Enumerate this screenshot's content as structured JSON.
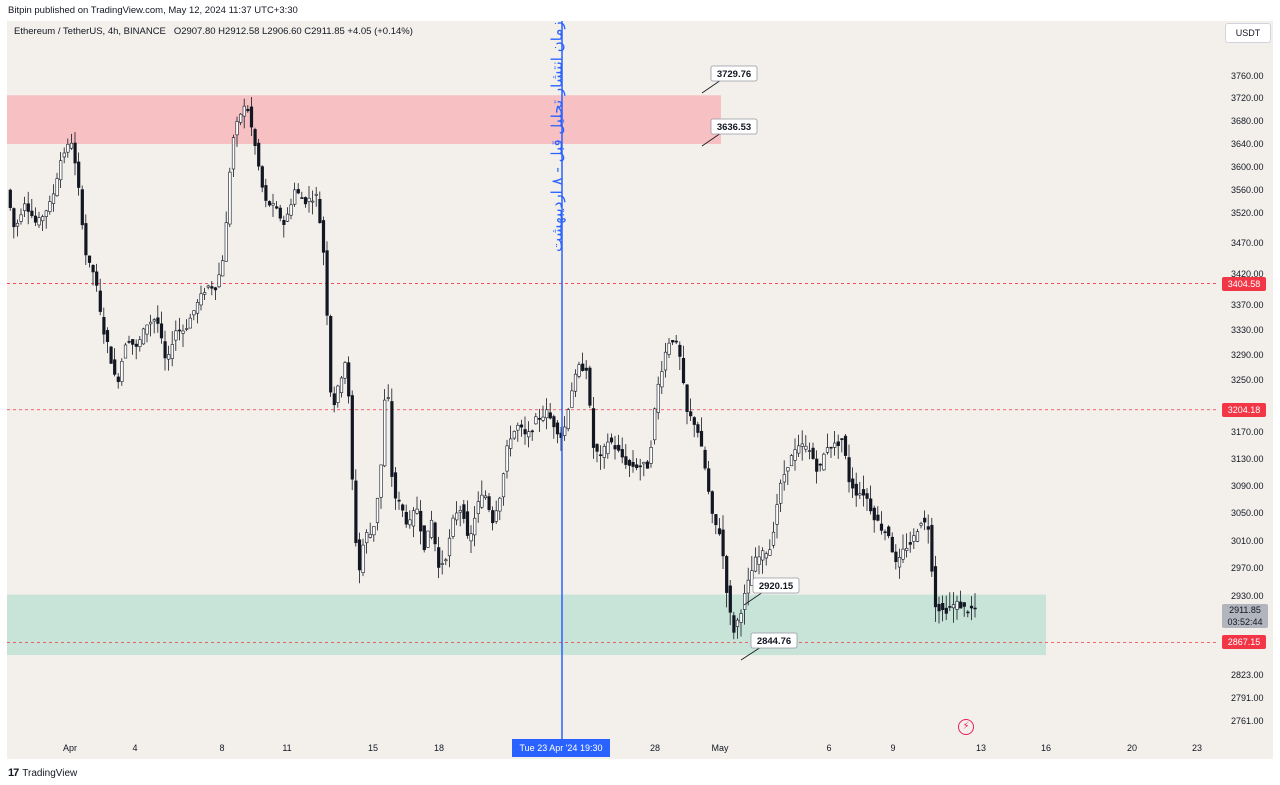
{
  "header": {
    "publisher": "Bitpin published on TradingView.com, May 12, 2024 11:37 UTC+3:30",
    "symbol": "Ethereum / TetherUS, 4h, BINANCE",
    "ohlc": "O2907.80  H2912.58  L2906.60  C2911.85  +4.05 (+0.14%)",
    "currency": "USDT"
  },
  "footer": {
    "brand": "TradingView"
  },
  "annotation": {
    "vertical_text": "زمان انتشار تحلیل قبل - ۸ اردیبهشت",
    "time_marker": "Tue 23 Apr '24   19:30"
  },
  "current_price": {
    "price": "2911.85",
    "countdown": "03:52:44"
  },
  "level_badges": [
    {
      "label": "3404.58",
      "price": 3404.58,
      "color": "#f23645"
    },
    {
      "label": "3204.18",
      "price": 3204.18,
      "color": "#f23645"
    },
    {
      "label": "2867.15",
      "price": 2867.15,
      "color": "#f23645"
    }
  ],
  "chart_data": {
    "type": "candlestick",
    "symbol": "ETHUSDT",
    "timeframe": "4h",
    "ylim": [
      2740,
      3790
    ],
    "price_ticks": [
      "3760.00",
      "3720.00",
      "3680.00",
      "3640.00",
      "3600.00",
      "3560.00",
      "3520.00",
      "3470.00",
      "3420.00",
      "3370.00",
      "3330.00",
      "3290.00",
      "3250.00",
      "3170.00",
      "3130.00",
      "3090.00",
      "3050.00",
      "3010.00",
      "2970.00",
      "2930.00",
      "2823.00",
      "2791.00",
      "2761.00"
    ],
    "time_ticks": [
      "Apr",
      "4",
      "8",
      "11",
      "15",
      "18",
      "28",
      "May",
      "6",
      "9",
      "13",
      "16",
      "20",
      "23"
    ],
    "zones": [
      {
        "name": "resistance",
        "from": 3640,
        "to": 3725,
        "color": "#f7c1c4"
      },
      {
        "name": "support",
        "from": 2850,
        "to": 2932,
        "color": "#c8e3d8"
      }
    ],
    "horizontal_levels": [
      3404.58,
      3204.18,
      2867.15
    ],
    "callouts": [
      "3729.76",
      "3636.53",
      "2920.15",
      "2844.76"
    ],
    "vertical_marker": "Tue 23 Apr '24 19:30",
    "swing_path": [
      [
        0,
        3560
      ],
      [
        8,
        3490
      ],
      [
        18,
        3540
      ],
      [
        30,
        3500
      ],
      [
        45,
        3540
      ],
      [
        55,
        3620
      ],
      [
        65,
        3645
      ],
      [
        72,
        3560
      ],
      [
        80,
        3440
      ],
      [
        88,
        3420
      ],
      [
        95,
        3340
      ],
      [
        102,
        3300
      ],
      [
        110,
        3240
      ],
      [
        120,
        3320
      ],
      [
        130,
        3300
      ],
      [
        140,
        3340
      ],
      [
        150,
        3350
      ],
      [
        160,
        3270
      ],
      [
        168,
        3330
      ],
      [
        178,
        3330
      ],
      [
        190,
        3370
      ],
      [
        200,
        3400
      ],
      [
        210,
        3400
      ],
      [
        218,
        3460
      ],
      [
        225,
        3640
      ],
      [
        233,
        3690
      ],
      [
        240,
        3710
      ],
      [
        248,
        3640
      ],
      [
        258,
        3540
      ],
      [
        268,
        3530
      ],
      [
        278,
        3500
      ],
      [
        288,
        3560
      ],
      [
        298,
        3540
      ],
      [
        310,
        3550
      ],
      [
        318,
        3440
      ],
      [
        325,
        3200
      ],
      [
        332,
        3240
      ],
      [
        340,
        3290
      ],
      [
        347,
        3050
      ],
      [
        352,
        2960
      ],
      [
        358,
        3020
      ],
      [
        366,
        3020
      ],
      [
        374,
        3110
      ],
      [
        380,
        3270
      ],
      [
        386,
        3080
      ],
      [
        394,
        3060
      ],
      [
        402,
        3030
      ],
      [
        410,
        3060
      ],
      [
        418,
        3000
      ],
      [
        425,
        3040
      ],
      [
        432,
        2970
      ],
      [
        440,
        2990
      ],
      [
        448,
        3050
      ],
      [
        456,
        3060
      ],
      [
        462,
        3000
      ],
      [
        470,
        3060
      ],
      [
        478,
        3080
      ],
      [
        486,
        3040
      ],
      [
        494,
        3080
      ],
      [
        502,
        3160
      ],
      [
        512,
        3180
      ],
      [
        520,
        3160
      ],
      [
        530,
        3190
      ],
      [
        540,
        3200
      ],
      [
        548,
        3180
      ],
      [
        556,
        3160
      ],
      [
        564,
        3230
      ],
      [
        572,
        3270
      ],
      [
        580,
        3270
      ],
      [
        586,
        3150
      ],
      [
        594,
        3130
      ],
      [
        602,
        3160
      ],
      [
        612,
        3140
      ],
      [
        622,
        3120
      ],
      [
        632,
        3120
      ],
      [
        642,
        3120
      ],
      [
        650,
        3230
      ],
      [
        658,
        3290
      ],
      [
        664,
        3320
      ],
      [
        672,
        3300
      ],
      [
        680,
        3200
      ],
      [
        690,
        3180
      ],
      [
        698,
        3120
      ],
      [
        706,
        3040
      ],
      [
        714,
        3020
      ],
      [
        720,
        2940
      ],
      [
        726,
        2880
      ],
      [
        732,
        2900
      ],
      [
        740,
        2940
      ],
      [
        748,
        2980
      ],
      [
        756,
        2990
      ],
      [
        764,
        3000
      ],
      [
        772,
        3080
      ],
      [
        780,
        3120
      ],
      [
        788,
        3140
      ],
      [
        796,
        3150
      ],
      [
        804,
        3140
      ],
      [
        812,
        3110
      ],
      [
        820,
        3150
      ],
      [
        828,
        3150
      ],
      [
        836,
        3160
      ],
      [
        842,
        3100
      ],
      [
        850,
        3080
      ],
      [
        858,
        3080
      ],
      [
        866,
        3050
      ],
      [
        874,
        3030
      ],
      [
        882,
        3020
      ],
      [
        890,
        2970
      ],
      [
        898,
        3000
      ],
      [
        906,
        3010
      ],
      [
        914,
        3040
      ],
      [
        922,
        3030
      ],
      [
        928,
        2920
      ],
      [
        936,
        2910
      ],
      [
        944,
        2915
      ],
      [
        952,
        2920
      ],
      [
        960,
        2910
      ],
      [
        965,
        2912
      ]
    ]
  }
}
